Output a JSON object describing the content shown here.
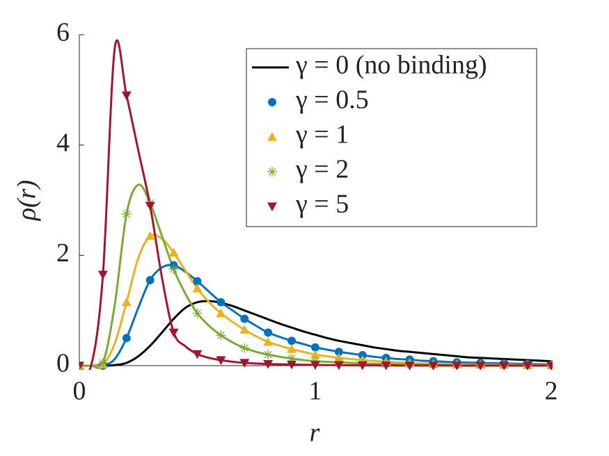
{
  "chart_data": {
    "type": "line",
    "xlabel": "r",
    "ylabel": "ρ(r)",
    "xlim": [
      0,
      2
    ],
    "ylim": [
      0,
      6
    ],
    "xticks": [
      0,
      1,
      2
    ],
    "yticks": [
      0,
      2,
      4,
      6
    ],
    "grid": false,
    "legend": "northeast",
    "x": [
      0,
      0.05,
      0.1,
      0.15,
      0.2,
      0.25,
      0.3,
      0.35,
      0.4,
      0.45,
      0.5,
      0.55,
      0.6,
      0.65,
      0.7,
      0.75,
      0.8,
      0.85,
      0.9,
      0.95,
      1,
      1.05,
      1.1,
      1.15,
      1.2,
      1.25,
      1.3,
      1.35,
      1.4,
      1.45,
      1.5,
      1.55,
      1.6,
      1.65,
      1.7,
      1.75,
      1.8,
      1.85,
      1.9,
      1.95,
      2
    ],
    "marker_x": [
      0,
      0.1,
      0.2,
      0.3,
      0.4,
      0.5,
      0.6,
      0.7,
      0.8,
      0.9,
      1,
      1.1,
      1.2,
      1.3,
      1.4,
      1.5,
      1.6,
      1.7,
      1.8,
      1.9,
      2
    ],
    "series": [
      {
        "name": "γ = 0 (no binding)",
        "color": "#000000",
        "marker": "none",
        "values": [
          0,
          0,
          0,
          0.01,
          0.05,
          0.17,
          0.36,
          0.6,
          0.85,
          1.05,
          1.15,
          1.17,
          1.14,
          1.08,
          1.0,
          0.92,
          0.84,
          0.76,
          0.69,
          0.62,
          0.56,
          0.5,
          0.45,
          0.41,
          0.37,
          0.33,
          0.3,
          0.27,
          0.25,
          0.23,
          0.21,
          0.19,
          0.17,
          0.15,
          0.14,
          0.13,
          0.12,
          0.11,
          0.1,
          0.09,
          0.08
        ]
      },
      {
        "name": "γ = 0.5",
        "color": "#0072BD",
        "marker": "o",
        "values": [
          0,
          0,
          0,
          0.12,
          0.5,
          1.05,
          1.55,
          1.78,
          1.82,
          1.7,
          1.53,
          1.34,
          1.15,
          1.0,
          0.85,
          0.72,
          0.6,
          0.52,
          0.45,
          0.39,
          0.33,
          0.29,
          0.25,
          0.22,
          0.19,
          0.16,
          0.14,
          0.12,
          0.11,
          0.09,
          0.08,
          0.07,
          0.06,
          0.055,
          0.05,
          0.045,
          0.04,
          0.035,
          0.03,
          0.025,
          0.02
        ],
        "marker_values": [
          0,
          0,
          0.5,
          1.55,
          1.82,
          1.53,
          1.15,
          0.85,
          0.6,
          0.45,
          0.33,
          0.25,
          0.19,
          0.14,
          0.11,
          0.08,
          0.06,
          0.05,
          0.04,
          0.03,
          0.02
        ]
      },
      {
        "name": "γ = 1",
        "color": "#EDB120",
        "marker": "^",
        "values": [
          0,
          0,
          0.02,
          0.4,
          1.15,
          1.95,
          2.35,
          2.3,
          2.05,
          1.72,
          1.4,
          1.15,
          0.95,
          0.79,
          0.65,
          0.53,
          0.43,
          0.36,
          0.3,
          0.25,
          0.2,
          0.17,
          0.14,
          0.12,
          0.1,
          0.085,
          0.07,
          0.06,
          0.05,
          0.04,
          0.035,
          0.03,
          0.025,
          0.022,
          0.02,
          0.017,
          0.015,
          0.012,
          0.01,
          0.01,
          0.01
        ],
        "marker_values": [
          0,
          0.02,
          1.15,
          2.35,
          2.05,
          1.4,
          0.95,
          0.65,
          0.43,
          0.3,
          0.2,
          0.14,
          0.1,
          0.07,
          0.05,
          0.035,
          0.025,
          0.02,
          0.015,
          0.01,
          0.01
        ]
      },
      {
        "name": "γ = 2",
        "color": "#77AC30",
        "marker": "*",
        "values": [
          0,
          0,
          0.05,
          1.1,
          2.75,
          3.28,
          2.95,
          2.35,
          1.75,
          1.3,
          0.95,
          0.72,
          0.55,
          0.42,
          0.32,
          0.25,
          0.2,
          0.16,
          0.13,
          0.1,
          0.08,
          0.07,
          0.06,
          0.05,
          0.04,
          0.035,
          0.03,
          0.025,
          0.02,
          0.017,
          0.015,
          0.012,
          0.01,
          0.01,
          0.01,
          0.007,
          0.005,
          0.005,
          0.005,
          0.003,
          0
        ],
        "marker_values": [
          0,
          0.05,
          2.75,
          2.95,
          1.75,
          0.95,
          0.55,
          0.32,
          0.2,
          0.13,
          0.08,
          0.06,
          0.04,
          0.03,
          0.02,
          0.015,
          0.01,
          0.01,
          0.005,
          0.005,
          0
        ]
      },
      {
        "name": "γ = 5",
        "color": "#A2142F",
        "marker": "v",
        "values": [
          0,
          0,
          1.65,
          5.75,
          4.9,
          3.9,
          2.9,
          1.6,
          0.6,
          0.35,
          0.21,
          0.14,
          0.1,
          0.07,
          0.05,
          0.04,
          0.03,
          0.025,
          0.02,
          0.015,
          0.012,
          0.01,
          0.008,
          0.006,
          0.005,
          0.004,
          0.003,
          0.002,
          0.002,
          0.001,
          0.001,
          0.001,
          0.001,
          0,
          0,
          0,
          0,
          0,
          0,
          0,
          0
        ],
        "marker_values": [
          0,
          1.65,
          4.9,
          2.9,
          0.6,
          0.21,
          0.1,
          0.05,
          0.03,
          0.02,
          0.012,
          0.008,
          0.005,
          0.003,
          0.002,
          0.001,
          0.001,
          0,
          0,
          0,
          0
        ]
      }
    ]
  }
}
